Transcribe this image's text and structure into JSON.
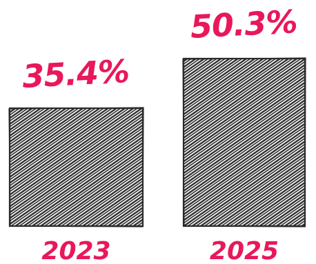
{
  "chart_data": {
    "type": "bar",
    "categories": [
      "2023",
      "2025"
    ],
    "values": [
      35.4,
      50.3
    ],
    "value_labels": [
      "35.4%",
      "50.3%"
    ],
    "title": "",
    "xlabel": "",
    "ylabel": "",
    "ylim": [
      0,
      50.3
    ],
    "grid": false,
    "legend": "none",
    "style": "hand-drawn hatched bars",
    "colors": {
      "bar_hatch": "#2a2a2a",
      "label": "#e8185a"
    }
  }
}
